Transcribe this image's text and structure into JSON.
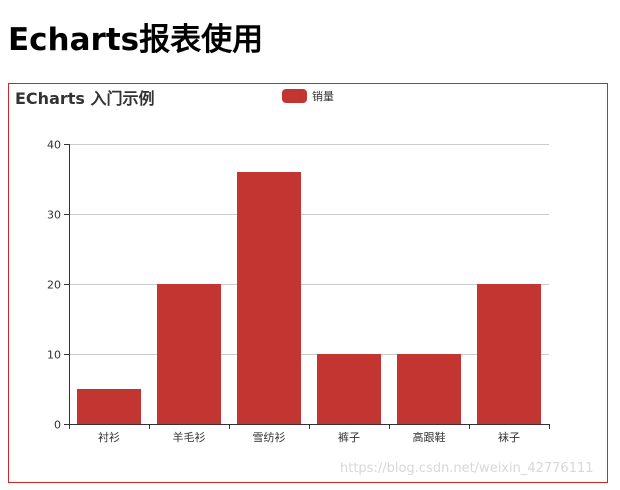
{
  "page": {
    "title": "Echarts报表使用",
    "watermark": "https://blog.csdn.net/weixin_42776111"
  },
  "colors": {
    "bar": "#c23531",
    "border": "#cc2a2a",
    "grid": "#cccccc",
    "axis": "#333333",
    "text": "#333333"
  },
  "chart_data": {
    "type": "bar",
    "title": "ECharts 入门示例",
    "legend_position": "top-center",
    "categories": [
      "衬衫",
      "羊毛衫",
      "雪纺衫",
      "裤子",
      "高跟鞋",
      "袜子"
    ],
    "series": [
      {
        "name": "销量",
        "values": [
          5,
          20,
          36,
          10,
          10,
          20
        ]
      }
    ],
    "yticks": [
      0,
      10,
      20,
      30,
      40
    ],
    "ylim": [
      0,
      40
    ],
    "grid": true
  }
}
